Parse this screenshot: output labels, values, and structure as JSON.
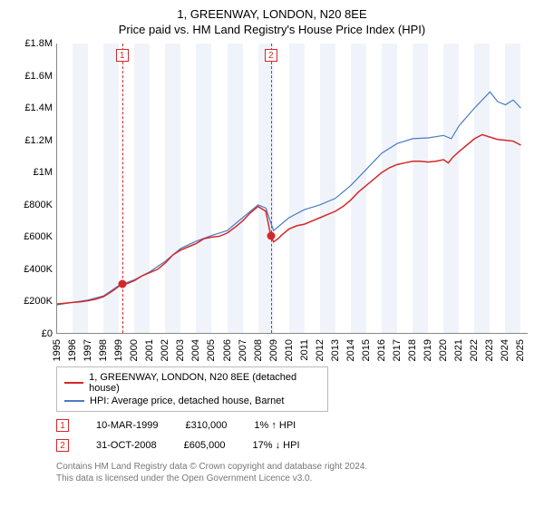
{
  "title": "1, GREENWAY, LONDON, N20 8EE",
  "subtitle": "Price paid vs. HM Land Registry's House Price Index (HPI)",
  "chart": {
    "type": "line",
    "background_color": "#ffffff",
    "band_color": "#f0f4fa",
    "ylim": [
      0,
      1800000
    ],
    "ytick_step": 200000,
    "yticks": [
      "£0",
      "£200K",
      "£400K",
      "£600K",
      "£800K",
      "£1M",
      "£1.2M",
      "£1.4M",
      "£1.6M",
      "£1.8M"
    ],
    "xlim": [
      1995,
      2025.5
    ],
    "xticks": [
      "1995",
      "1996",
      "1997",
      "1998",
      "1999",
      "2000",
      "2001",
      "2002",
      "2003",
      "2004",
      "2005",
      "2006",
      "2007",
      "2008",
      "2009",
      "2010",
      "2011",
      "2012",
      "2013",
      "2014",
      "2015",
      "2016",
      "2017",
      "2018",
      "2019",
      "2020",
      "2021",
      "2022",
      "2023",
      "2024",
      "2025"
    ],
    "event_line_color": "#d62728",
    "property_series": {
      "label": "1, GREENWAY, LONDON, N20 8EE (detached house)",
      "color": "#d62728",
      "line_width": 1.5,
      "data": [
        [
          1995.0,
          185000
        ],
        [
          1995.5,
          190000
        ],
        [
          1996.0,
          195000
        ],
        [
          1996.5,
          198000
        ],
        [
          1997.0,
          205000
        ],
        [
          1997.5,
          215000
        ],
        [
          1998.0,
          230000
        ],
        [
          1998.5,
          260000
        ],
        [
          1999.0,
          295000
        ],
        [
          1999.2,
          310000
        ],
        [
          1999.5,
          310000
        ],
        [
          2000.0,
          330000
        ],
        [
          2000.5,
          360000
        ],
        [
          2001.0,
          380000
        ],
        [
          2001.5,
          400000
        ],
        [
          2002.0,
          440000
        ],
        [
          2002.5,
          490000
        ],
        [
          2003.0,
          520000
        ],
        [
          2003.5,
          540000
        ],
        [
          2004.0,
          560000
        ],
        [
          2004.5,
          590000
        ],
        [
          2005.0,
          600000
        ],
        [
          2005.5,
          605000
        ],
        [
          2006.0,
          625000
        ],
        [
          2006.5,
          660000
        ],
        [
          2007.0,
          700000
        ],
        [
          2007.5,
          750000
        ],
        [
          2008.0,
          790000
        ],
        [
          2008.5,
          760000
        ],
        [
          2008.83,
          605000
        ],
        [
          2009.0,
          570000
        ],
        [
          2009.3,
          590000
        ],
        [
          2009.5,
          610000
        ],
        [
          2010.0,
          650000
        ],
        [
          2010.5,
          670000
        ],
        [
          2011.0,
          680000
        ],
        [
          2011.5,
          700000
        ],
        [
          2012.0,
          720000
        ],
        [
          2012.5,
          740000
        ],
        [
          2013.0,
          760000
        ],
        [
          2013.5,
          790000
        ],
        [
          2014.0,
          830000
        ],
        [
          2014.5,
          880000
        ],
        [
          2015.0,
          920000
        ],
        [
          2015.5,
          960000
        ],
        [
          2016.0,
          1000000
        ],
        [
          2016.5,
          1030000
        ],
        [
          2017.0,
          1050000
        ],
        [
          2017.5,
          1060000
        ],
        [
          2018.0,
          1070000
        ],
        [
          2018.5,
          1070000
        ],
        [
          2019.0,
          1065000
        ],
        [
          2019.5,
          1070000
        ],
        [
          2020.0,
          1080000
        ],
        [
          2020.3,
          1060000
        ],
        [
          2020.6,
          1095000
        ],
        [
          2021.0,
          1130000
        ],
        [
          2021.5,
          1170000
        ],
        [
          2022.0,
          1210000
        ],
        [
          2022.5,
          1235000
        ],
        [
          2023.0,
          1220000
        ],
        [
          2023.5,
          1205000
        ],
        [
          2024.0,
          1200000
        ],
        [
          2024.5,
          1195000
        ],
        [
          2025.0,
          1170000
        ]
      ]
    },
    "hpi_series": {
      "label": "HPI: Average price, detached house, Barnet",
      "color": "#4a7cc4",
      "line_width": 1.2,
      "data": [
        [
          1995.0,
          180000
        ],
        [
          1996.0,
          195000
        ],
        [
          1997.0,
          210000
        ],
        [
          1998.0,
          235000
        ],
        [
          1999.0,
          300000
        ],
        [
          2000.0,
          335000
        ],
        [
          2001.0,
          385000
        ],
        [
          2002.0,
          450000
        ],
        [
          2003.0,
          530000
        ],
        [
          2004.0,
          575000
        ],
        [
          2005.0,
          610000
        ],
        [
          2006.0,
          640000
        ],
        [
          2007.0,
          720000
        ],
        [
          2008.0,
          800000
        ],
        [
          2008.5,
          780000
        ],
        [
          2009.0,
          640000
        ],
        [
          2009.5,
          680000
        ],
        [
          2010.0,
          720000
        ],
        [
          2011.0,
          770000
        ],
        [
          2012.0,
          800000
        ],
        [
          2013.0,
          840000
        ],
        [
          2014.0,
          920000
        ],
        [
          2015.0,
          1020000
        ],
        [
          2016.0,
          1120000
        ],
        [
          2017.0,
          1180000
        ],
        [
          2018.0,
          1210000
        ],
        [
          2019.0,
          1215000
        ],
        [
          2020.0,
          1230000
        ],
        [
          2020.5,
          1210000
        ],
        [
          2021.0,
          1290000
        ],
        [
          2022.0,
          1400000
        ],
        [
          2022.7,
          1470000
        ],
        [
          2023.0,
          1500000
        ],
        [
          2023.5,
          1440000
        ],
        [
          2024.0,
          1420000
        ],
        [
          2024.5,
          1450000
        ],
        [
          2025.0,
          1400000
        ]
      ]
    },
    "markers": [
      {
        "flag": "1",
        "x": 1999.2,
        "y": 310000,
        "color": "#d62728"
      },
      {
        "flag": "2",
        "x": 2008.83,
        "y": 605000,
        "color": "#d62728"
      }
    ]
  },
  "sales": [
    {
      "flag": "1",
      "date": "10-MAR-1999",
      "price": "£310,000",
      "delta": "1% ↑ HPI"
    },
    {
      "flag": "2",
      "date": "31-OCT-2008",
      "price": "£605,000",
      "delta": "17% ↓ HPI"
    }
  ],
  "footer_line1": "Contains HM Land Registry data © Crown copyright and database right 2024.",
  "footer_line2": "This data is licensed under the Open Government Licence v3.0."
}
